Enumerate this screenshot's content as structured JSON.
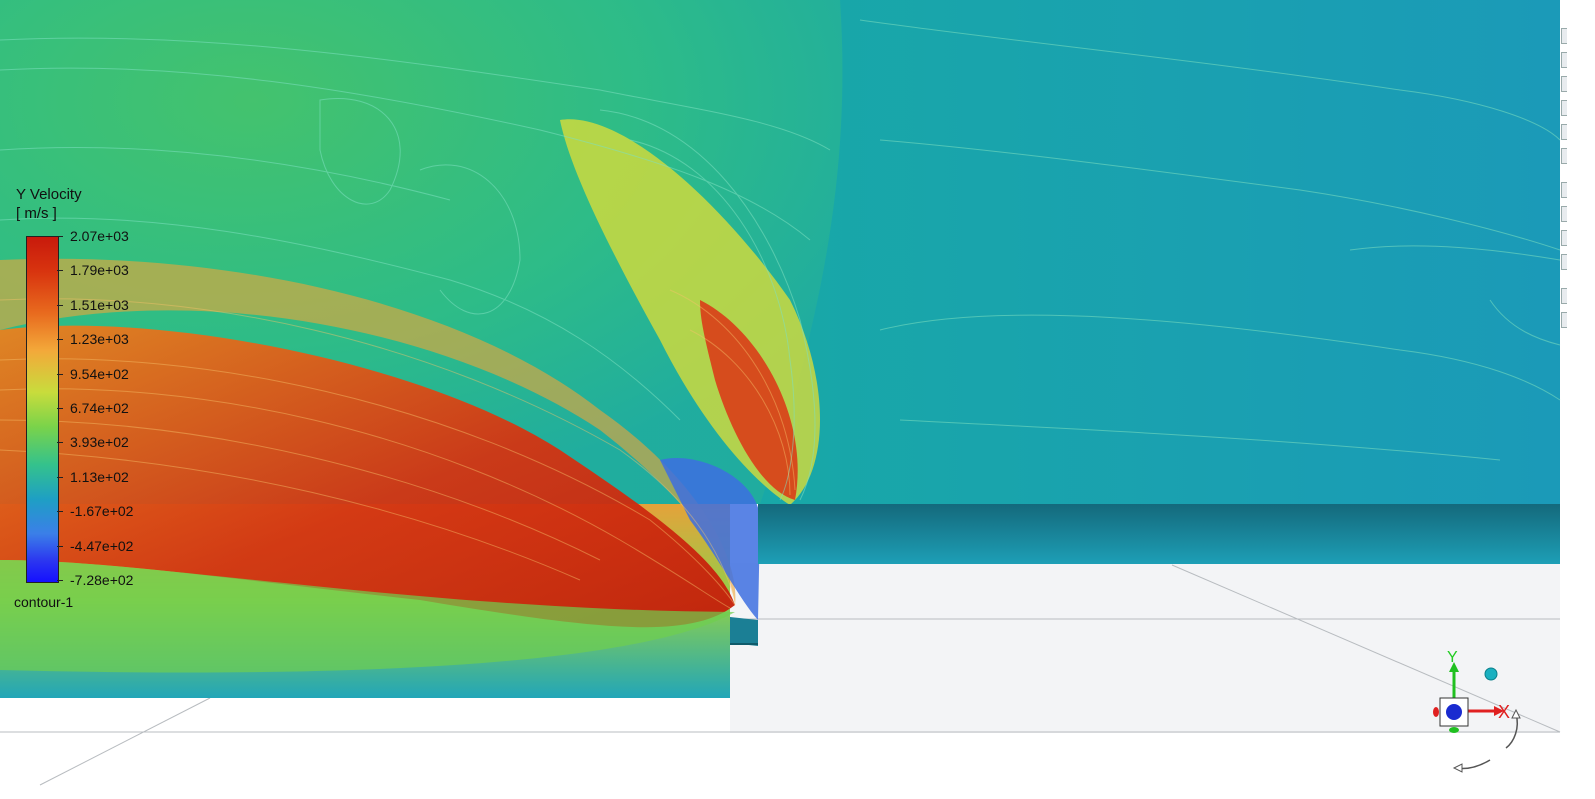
{
  "legend": {
    "title": "Y Velocity",
    "units": "[ m/s ]",
    "name": "contour-1",
    "ticks": [
      "2.07e+03",
      "1.79e+03",
      "1.51e+03",
      "1.23e+03",
      "9.54e+02",
      "6.74e+02",
      "3.93e+02",
      "1.13e+02",
      "-1.67e+02",
      "-4.47e+02",
      "-7.28e+02"
    ]
  },
  "axes": {
    "x": "X",
    "y": "Y"
  },
  "colors": {
    "accent_red": "#d01b0b",
    "far_field": "#1a9eb8",
    "background": "#ffffff"
  }
}
